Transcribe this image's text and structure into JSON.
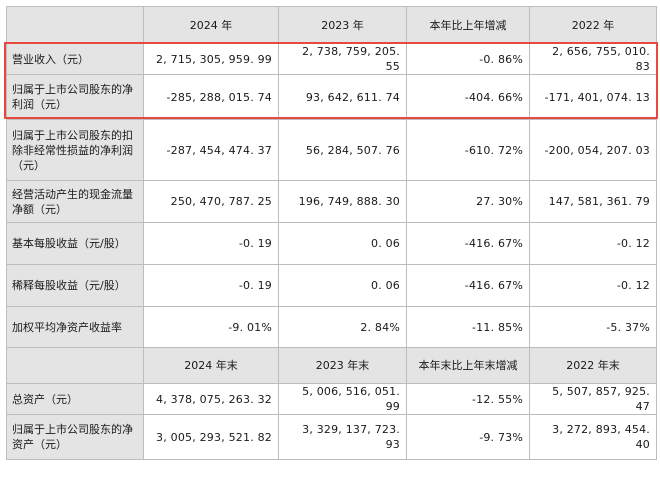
{
  "header1": [
    "",
    "2024 年",
    "2023 年",
    "本年比上年增减",
    "2022 年"
  ],
  "rows1": [
    {
      "label": "营业收入（元）",
      "values": [
        "2, 715, 305, 959. 99",
        "2, 738, 759, 205. 55",
        "-0. 86%",
        "2, 656, 755, 010. 83"
      ]
    },
    {
      "label": "归属于上市公司股东的净利润（元）",
      "values": [
        "-285, 288, 015. 74",
        "93, 642, 611. 74",
        "-404. 66%",
        "-171, 401, 074. 13"
      ]
    },
    {
      "label": "归属于上市公司股东的扣除非经常性损益的净利润（元）",
      "values": [
        "-287, 454, 474. 37",
        "56, 284, 507. 76",
        "-610. 72%",
        "-200, 054, 207. 03"
      ]
    },
    {
      "label": "经营活动产生的现金流量净额（元）",
      "values": [
        "250, 470, 787. 25",
        "196, 749, 888. 30",
        "27. 30%",
        "147, 581, 361. 79"
      ]
    },
    {
      "label": "基本每股收益（元/股）",
      "values": [
        "-0. 19",
        "0. 06",
        "-416. 67%",
        "-0. 12"
      ]
    },
    {
      "label": "稀释每股收益（元/股）",
      "values": [
        "-0. 19",
        "0. 06",
        "-416. 67%",
        "-0. 12"
      ]
    },
    {
      "label": "加权平均净资产收益率",
      "values": [
        "-9. 01%",
        "2. 84%",
        "-11. 85%",
        "-5. 37%"
      ]
    }
  ],
  "header2": [
    "",
    "2024 年末",
    "2023 年末",
    "本年末比上年末增减",
    "2022 年末"
  ],
  "rows2": [
    {
      "label": "总资产（元）",
      "values": [
        "4, 378, 075, 263. 32",
        "5, 006, 516, 051. 99",
        "-12. 55%",
        "5, 507, 857, 925. 47"
      ]
    },
    {
      "label": "归属于上市公司股东的净资产（元）",
      "values": [
        "3, 005, 293, 521. 82",
        "3, 329, 137, 723. 93",
        "-9. 73%",
        "3, 272, 893, 454. 40"
      ]
    }
  ],
  "highlight_color": "#e8483e"
}
